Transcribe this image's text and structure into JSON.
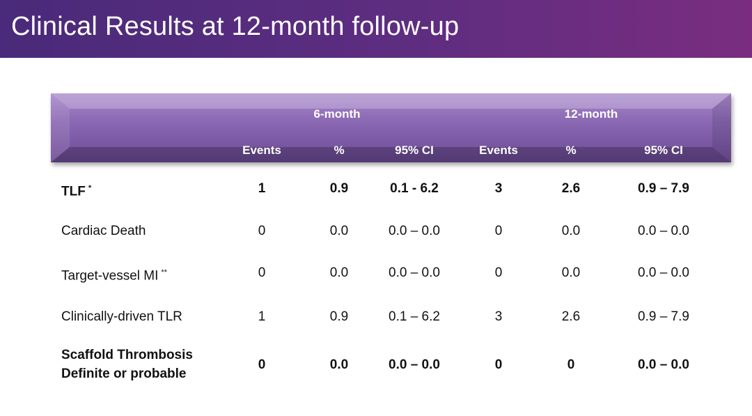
{
  "slide": {
    "title": "Clinical Results at 12-month follow-up"
  },
  "table": {
    "group_headers": [
      "6-month",
      "12-month"
    ],
    "column_headers": [
      "Events",
      "%",
      "95% CI",
      "Events",
      "%",
      "95% CI"
    ],
    "rows": [
      {
        "label": "TLF",
        "label_line2": "",
        "mark": "*",
        "bold": true,
        "cells": [
          "1",
          "0.9",
          "0.1 - 6.2",
          "3",
          "2.6",
          "0.9 – 7.9"
        ]
      },
      {
        "label": "Cardiac Death",
        "label_line2": "",
        "mark": "",
        "bold": false,
        "cells": [
          "0",
          "0.0",
          "0.0 – 0.0",
          "0",
          "0.0",
          "0.0 – 0.0"
        ]
      },
      {
        "label": "Target-vessel MI",
        "label_line2": "",
        "mark": "**",
        "bold": false,
        "cells": [
          "0",
          "0.0",
          "0.0 – 0.0",
          "0",
          "0.0",
          "0.0 – 0.0"
        ]
      },
      {
        "label": "Clinically-driven TLR",
        "label_line2": "",
        "mark": "",
        "bold": false,
        "cells": [
          "1",
          "0.9",
          "0.1 – 6.2",
          "3",
          "2.6",
          "0.9 – 7.9"
        ]
      },
      {
        "label": "Scaffold Thrombosis",
        "label_line2": "Definite or probable",
        "mark": "",
        "bold": true,
        "cells": [
          "0",
          "0.0",
          "0.0 – 0.0",
          "0",
          "0",
          "0.0 – 0.0"
        ]
      }
    ]
  }
}
